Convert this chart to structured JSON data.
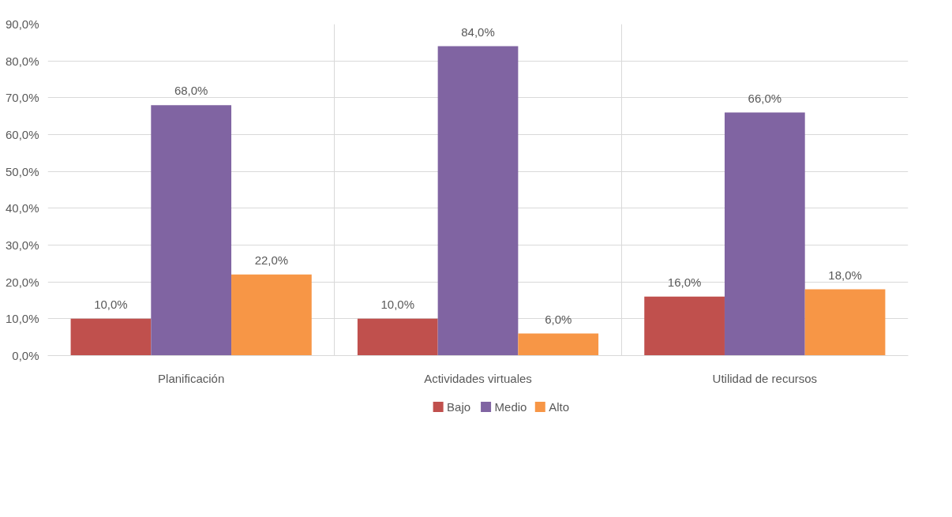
{
  "chart_data": {
    "type": "bar",
    "categories": [
      "Planificación",
      "Actividades virtuales",
      "Utilidad de recursos"
    ],
    "series": [
      {
        "name": "Bajo",
        "color": "#c0504d",
        "values": [
          10,
          10,
          16
        ],
        "value_labels": [
          "10,0%",
          "10,0%",
          "16,0%"
        ]
      },
      {
        "name": "Medio",
        "color": "#8064a2",
        "values": [
          68,
          84,
          66
        ],
        "value_labels": [
          "68,0%",
          "84,0%",
          "66,0%"
        ]
      },
      {
        "name": "Alto",
        "color": "#f79646",
        "values": [
          22,
          6,
          18
        ],
        "value_labels": [
          "22,0%",
          "6,0%",
          "18,0%"
        ]
      }
    ],
    "ylim": [
      0,
      90
    ],
    "yticks": [
      {
        "value": 0,
        "label": "0,0%"
      },
      {
        "value": 10,
        "label": "10,0%"
      },
      {
        "value": 20,
        "label": "20,0%"
      },
      {
        "value": 30,
        "label": "30,0%"
      },
      {
        "value": 40,
        "label": "40,0%"
      },
      {
        "value": 50,
        "label": "50,0%"
      },
      {
        "value": 60,
        "label": "60,0%"
      },
      {
        "value": 70,
        "label": "70,0%"
      },
      {
        "value": 80,
        "label": "80,0%"
      },
      {
        "value": 90,
        "label": "90,0%"
      }
    ],
    "grid": true,
    "legend": "bottom"
  }
}
